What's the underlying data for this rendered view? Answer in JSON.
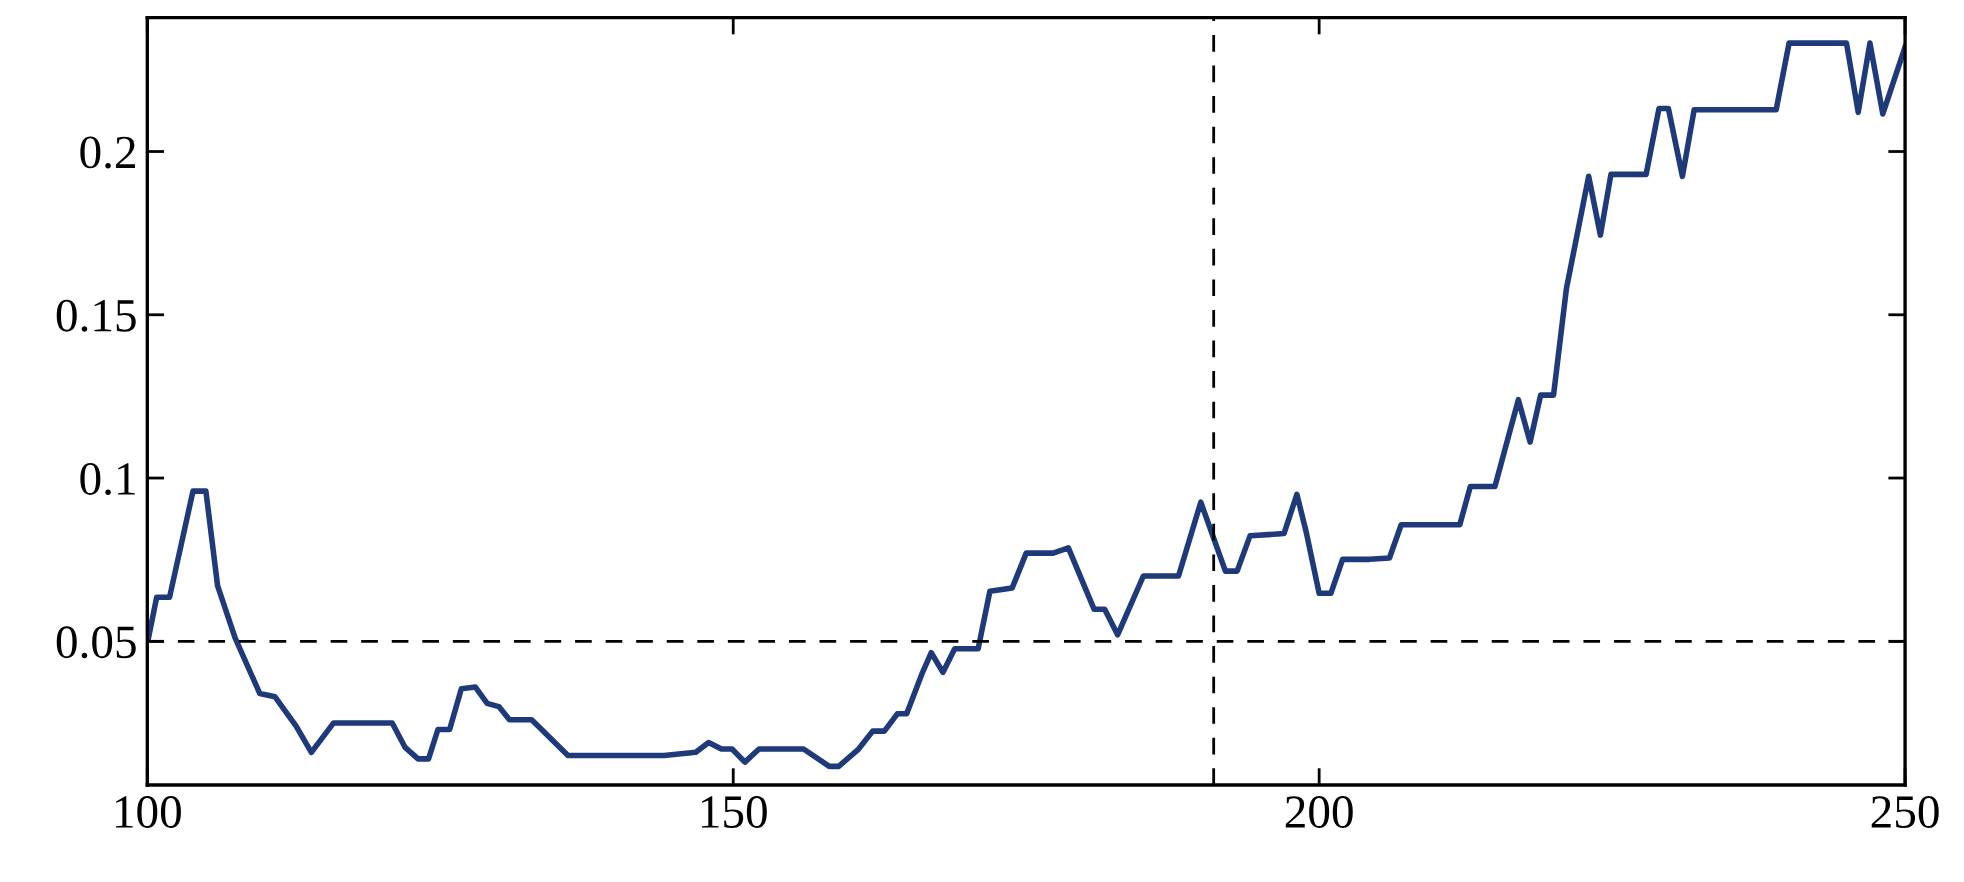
{
  "chart_data": {
    "type": "line",
    "xlim": [
      100,
      250
    ],
    "ylim": [
      0.006,
      0.241
    ],
    "xticks": [
      100,
      150,
      200,
      250
    ],
    "yticks": [
      0.05,
      0.1,
      0.15,
      0.2
    ],
    "grid": false,
    "marker": "none",
    "line_style": "solid",
    "ref_lines": [
      {
        "axis": "y",
        "value": 0.05,
        "color": "#000000",
        "line_style": "dashed"
      },
      {
        "axis": "x",
        "value": 191,
        "color": "#000000",
        "line_style": "dashed"
      }
    ],
    "series": [
      {
        "color": "#1f3a7a",
        "x": [
          100.1,
          100.8,
          101.9,
          103.9,
          105,
          106,
          107.5,
          109.6,
          110.9,
          112.7,
          114,
          115.9,
          120.9,
          122,
          123.1,
          124,
          124.8,
          125.8,
          126.8,
          128,
          129,
          130,
          130.9,
          132.8,
          135.9,
          144.1,
          146.8,
          147.9,
          149,
          149.9,
          151,
          152.2,
          156,
          158.2,
          159,
          160.7,
          161.9,
          162.9,
          164,
          164.8,
          166.1,
          166.9,
          167.9,
          168.9,
          170.9,
          171.9,
          173.8,
          175,
          177.3,
          178.6,
          180.8,
          181.7,
          182.8,
          185,
          188,
          189.9,
          192,
          193,
          194.1,
          197,
          198.1,
          198.9,
          200,
          201,
          202,
          204.3,
          206,
          207,
          212,
          212.9,
          215,
          217,
          218,
          218.9,
          220,
          221.1,
          223,
          224,
          224.9,
          227.9,
          229,
          229.8,
          231,
          232,
          239,
          240.1,
          245,
          246,
          247,
          248.1,
          250
        ],
        "values": [
          0.051,
          0.0635,
          0.0635,
          0.096,
          0.096,
          0.067,
          0.051,
          0.034,
          0.033,
          0.024,
          0.016,
          0.025,
          0.025,
          0.0175,
          0.014,
          0.014,
          0.023,
          0.023,
          0.0355,
          0.036,
          0.031,
          0.03,
          0.026,
          0.026,
          0.015,
          0.015,
          0.016,
          0.019,
          0.017,
          0.017,
          0.013,
          0.017,
          0.017,
          0.0117,
          0.0117,
          0.017,
          0.0225,
          0.0225,
          0.0278,
          0.0278,
          0.04,
          0.0465,
          0.0405,
          0.0477,
          0.0477,
          0.0653,
          0.0663,
          0.077,
          0.077,
          0.0786,
          0.0598,
          0.0598,
          0.052,
          0.07,
          0.07,
          0.0926,
          0.0715,
          0.0715,
          0.0823,
          0.083,
          0.095,
          0.0834,
          0.0647,
          0.0647,
          0.0751,
          0.0751,
          0.0755,
          0.0857,
          0.0857,
          0.0974,
          0.0974,
          0.124,
          0.111,
          0.1254,
          0.1254,
          0.158,
          0.1924,
          0.1744,
          0.193,
          0.193,
          0.2132,
          0.2132,
          0.1924,
          0.2128,
          0.2128,
          0.2332,
          0.2332,
          0.212,
          0.2332,
          0.2115,
          0.232
        ]
      }
    ]
  }
}
